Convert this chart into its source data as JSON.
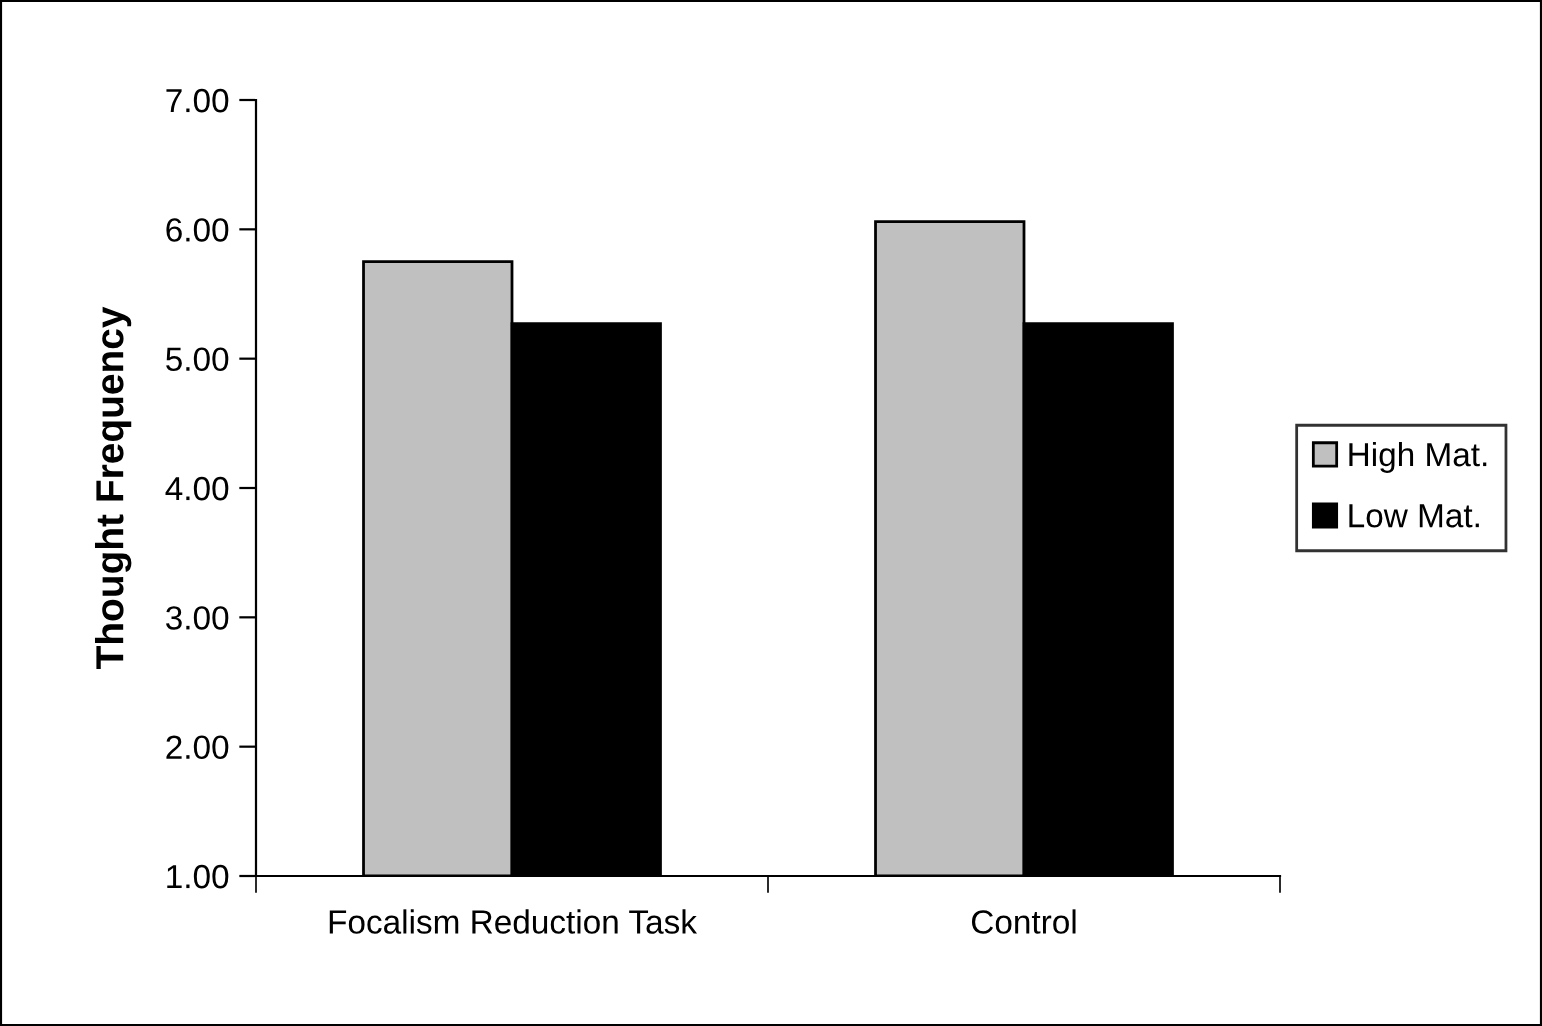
{
  "chart_data": {
    "type": "bar",
    "ylabel": "Thought Frequency",
    "categories": [
      "Focalism Reduction Task",
      "Control"
    ],
    "series": [
      {
        "name": "High Mat.",
        "color": "#c0c0c0",
        "values": [
          5.75,
          6.06
        ]
      },
      {
        "name": "Low Mat.",
        "color": "#000000",
        "values": [
          5.27,
          5.27
        ]
      }
    ],
    "ylim": [
      1,
      7
    ],
    "yticks": [
      {
        "value": 1,
        "label": "1.00"
      },
      {
        "value": 2,
        "label": "2.00"
      },
      {
        "value": 3,
        "label": "3.00"
      },
      {
        "value": 4,
        "label": "4.00"
      },
      {
        "value": 5,
        "label": "5.00"
      },
      {
        "value": 6,
        "label": "6.00"
      },
      {
        "value": 7,
        "label": "7.00"
      }
    ],
    "grid": false,
    "legend": "right"
  }
}
